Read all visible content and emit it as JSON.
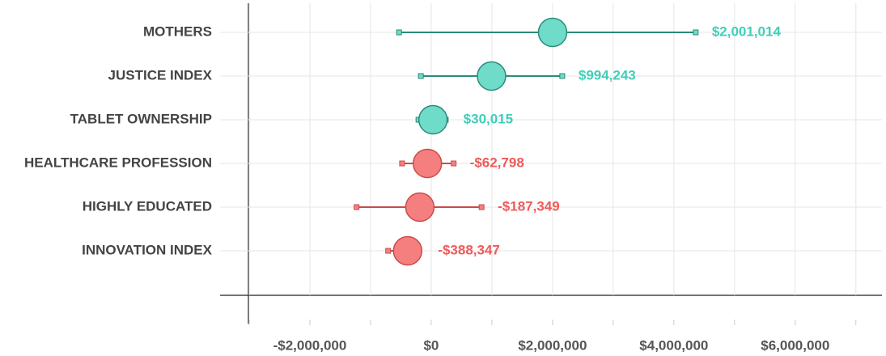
{
  "chart_data": {
    "type": "dot-errorbar",
    "categories": [
      "MOTHERS",
      "JUSTICE INDEX",
      "TABLET OWNERSHIP",
      "HEALTHCARE PROFESSION",
      "HIGHLY EDUCATED",
      "INNOVATION INDEX"
    ],
    "values": [
      2001014,
      994243,
      30015,
      -62798,
      -187349,
      -388347
    ],
    "value_labels": [
      "$2,001,014",
      "$994,243",
      "$30,015",
      "-$62,798",
      "-$187,349",
      "-$388,347"
    ],
    "error_low": [
      -530000,
      -170000,
      -210000,
      -480000,
      -1230000,
      -710000
    ],
    "error_high": [
      4360000,
      2160000,
      240000,
      370000,
      830000,
      -560000
    ],
    "positive_color": "#6fdbc9",
    "positive_edge_color": "#2b8a79",
    "positive_label_color": "#3fcfb8",
    "negative_color": "#f57f7f",
    "negative_edge_color": "#c94b4b",
    "negative_label_color": "#ef5a5a",
    "xlim": [
      -3480000,
      7430000
    ],
    "xticks": [
      {
        "value": -2000000,
        "label": "-$2,000,000"
      },
      {
        "value": 0,
        "label": "$0"
      },
      {
        "value": 2000000,
        "label": "$2,000,000"
      },
      {
        "value": 4000000,
        "label": "$4,000,000"
      },
      {
        "value": 6000000,
        "label": "$6,000,000"
      }
    ],
    "minor_xticks": [
      -3000000,
      -1000000,
      1000000,
      3000000,
      5000000,
      7000000
    ],
    "grid": true
  }
}
